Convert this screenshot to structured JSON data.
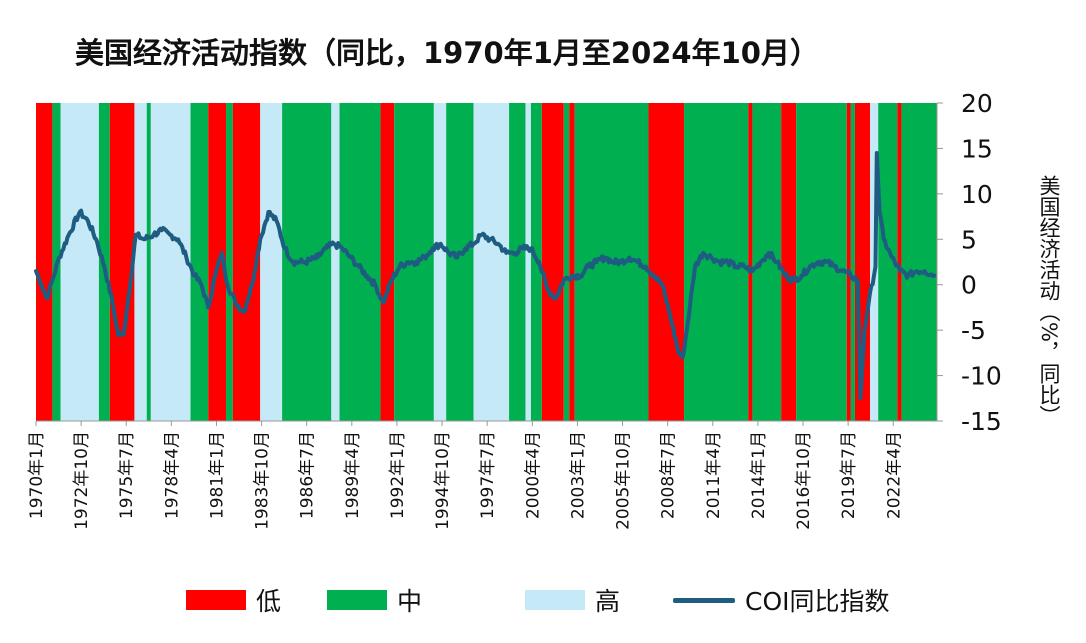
{
  "title": "美国经济活动指数（同比，1970年1月至2024年10月）",
  "colors": {
    "low": "#ff0000",
    "mid": "#00b050",
    "high": "#c6e9f7",
    "line": "#1f5c82",
    "axis": "#999999"
  },
  "legend": [
    {
      "key": "low",
      "label": "低",
      "kind": "swatch"
    },
    {
      "key": "mid",
      "label": "中",
      "kind": "swatch"
    },
    {
      "key": "high",
      "label": "高",
      "kind": "swatch"
    },
    {
      "key": "line",
      "label": "COI同比指数",
      "kind": "line"
    }
  ],
  "chart_data": {
    "type": "line",
    "title": "美国经济活动指数（同比，1970年1月至2024年10月）",
    "xlabel": "",
    "ylabel": "美国经济活动（%，同比）",
    "y_axis_side": "right",
    "ylim": [
      -15,
      20
    ],
    "yticks": [
      20,
      15,
      10,
      5,
      0,
      -5,
      -10,
      -15
    ],
    "x_range": [
      "1970-01",
      "2024-12"
    ],
    "xtick_labels": [
      "1970年1月",
      "1972年10月",
      "1975年7月",
      "1978年4月",
      "1981年1月",
      "1983年10月",
      "1986年7月",
      "1989年4月",
      "1992年1月",
      "1994年10月",
      "1997年7月",
      "2000年4月",
      "2003年1月",
      "2005年10月",
      "2008年7月",
      "2011年4月",
      "2014年1月",
      "2016年10月",
      "2019年7月",
      "2022年4月"
    ],
    "regimes": [
      {
        "start": "1970-01",
        "end": "1971-01",
        "level": "low"
      },
      {
        "start": "1971-01",
        "end": "1971-07",
        "level": "mid"
      },
      {
        "start": "1971-07",
        "end": "1973-11",
        "level": "high"
      },
      {
        "start": "1973-11",
        "end": "1974-07",
        "level": "mid"
      },
      {
        "start": "1974-07",
        "end": "1976-01",
        "level": "low"
      },
      {
        "start": "1976-01",
        "end": "1976-10",
        "level": "high"
      },
      {
        "start": "1976-10",
        "end": "1977-01",
        "level": "mid"
      },
      {
        "start": "1977-01",
        "end": "1979-06",
        "level": "high"
      },
      {
        "start": "1979-06",
        "end": "1980-07",
        "level": "mid"
      },
      {
        "start": "1980-07",
        "end": "1981-08",
        "level": "low"
      },
      {
        "start": "1981-08",
        "end": "1982-01",
        "level": "mid"
      },
      {
        "start": "1982-01",
        "end": "1983-09",
        "level": "low"
      },
      {
        "start": "1983-09",
        "end": "1985-01",
        "level": "high"
      },
      {
        "start": "1985-01",
        "end": "1988-01",
        "level": "mid"
      },
      {
        "start": "1988-01",
        "end": "1988-07",
        "level": "high"
      },
      {
        "start": "1988-07",
        "end": "1991-01",
        "level": "mid"
      },
      {
        "start": "1991-01",
        "end": "1991-11",
        "level": "low"
      },
      {
        "start": "1991-11",
        "end": "1994-04",
        "level": "mid"
      },
      {
        "start": "1994-04",
        "end": "1995-01",
        "level": "high"
      },
      {
        "start": "1995-01",
        "end": "1996-09",
        "level": "mid"
      },
      {
        "start": "1996-09",
        "end": "1998-11",
        "level": "high"
      },
      {
        "start": "1998-11",
        "end": "1999-11",
        "level": "mid"
      },
      {
        "start": "1999-11",
        "end": "2000-03",
        "level": "high"
      },
      {
        "start": "2000-03",
        "end": "2000-11",
        "level": "mid"
      },
      {
        "start": "2000-11",
        "end": "2002-03",
        "level": "low"
      },
      {
        "start": "2002-03",
        "end": "2002-07",
        "level": "mid"
      },
      {
        "start": "2002-07",
        "end": "2002-11",
        "level": "low"
      },
      {
        "start": "2002-11",
        "end": "2007-05",
        "level": "mid"
      },
      {
        "start": "2007-05",
        "end": "2009-07",
        "level": "low"
      },
      {
        "start": "2009-07",
        "end": "2013-06",
        "level": "mid"
      },
      {
        "start": "2013-06",
        "end": "2013-09",
        "level": "low"
      },
      {
        "start": "2013-09",
        "end": "2015-06",
        "level": "mid"
      },
      {
        "start": "2015-06",
        "end": "2016-05",
        "level": "low"
      },
      {
        "start": "2016-05",
        "end": "2019-06",
        "level": "mid"
      },
      {
        "start": "2019-06",
        "end": "2019-09",
        "level": "low"
      },
      {
        "start": "2019-09",
        "end": "2019-12",
        "level": "mid"
      },
      {
        "start": "2019-12",
        "end": "2020-11",
        "level": "low"
      },
      {
        "start": "2020-11",
        "end": "2021-05",
        "level": "high"
      },
      {
        "start": "2021-05",
        "end": "2022-07",
        "level": "mid"
      },
      {
        "start": "2022-07",
        "end": "2022-10",
        "level": "low"
      },
      {
        "start": "2022-10",
        "end": "2024-12",
        "level": "mid"
      }
    ],
    "series": [
      {
        "name": "COI同比指数",
        "points": [
          [
            "1970-01",
            1.5
          ],
          [
            "1970-05",
            0
          ],
          [
            "1970-09",
            -1.5
          ],
          [
            "1971-01",
            0.5
          ],
          [
            "1971-06",
            3
          ],
          [
            "1972-01",
            5.5
          ],
          [
            "1972-09",
            8
          ],
          [
            "1973-03",
            7
          ],
          [
            "1973-09",
            5
          ],
          [
            "1974-03",
            2
          ],
          [
            "1974-09",
            -2
          ],
          [
            "1975-01",
            -5.5
          ],
          [
            "1975-05",
            -5.5
          ],
          [
            "1975-09",
            -1
          ],
          [
            "1976-02",
            5.5
          ],
          [
            "1976-08",
            5
          ],
          [
            "1977-03",
            5.5
          ],
          [
            "1977-09",
            6
          ],
          [
            "1978-03",
            5.5
          ],
          [
            "1978-09",
            5
          ],
          [
            "1979-03",
            3
          ],
          [
            "1979-09",
            1
          ],
          [
            "1980-02",
            0
          ],
          [
            "1980-07",
            -2.5
          ],
          [
            "1980-12",
            1
          ],
          [
            "1981-05",
            3.5
          ],
          [
            "1981-09",
            0
          ],
          [
            "1982-03",
            -2
          ],
          [
            "1982-09",
            -3
          ],
          [
            "1983-03",
            0
          ],
          [
            "1983-09",
            5
          ],
          [
            "1984-03",
            8
          ],
          [
            "1984-09",
            7
          ],
          [
            "1985-03",
            4
          ],
          [
            "1985-09",
            2.5
          ],
          [
            "1986-06",
            2.5
          ],
          [
            "1987-03",
            3
          ],
          [
            "1987-09",
            4
          ],
          [
            "1988-03",
            4.5
          ],
          [
            "1988-09",
            4
          ],
          [
            "1989-03",
            3
          ],
          [
            "1989-09",
            2
          ],
          [
            "1990-03",
            1
          ],
          [
            "1990-09",
            0
          ],
          [
            "1991-03",
            -2
          ],
          [
            "1991-09",
            0.5
          ],
          [
            "1992-03",
            2
          ],
          [
            "1992-09",
            2.5
          ],
          [
            "1993-03",
            2.5
          ],
          [
            "1993-09",
            3
          ],
          [
            "1994-03",
            4
          ],
          [
            "1994-09",
            4.5
          ],
          [
            "1995-03",
            3.5
          ],
          [
            "1995-09",
            3
          ],
          [
            "1996-03",
            4
          ],
          [
            "1996-09",
            4.5
          ],
          [
            "1997-03",
            5.5
          ],
          [
            "1997-09",
            5
          ],
          [
            "1998-03",
            4.5
          ],
          [
            "1998-09",
            3.5
          ],
          [
            "1999-03",
            3.5
          ],
          [
            "1999-09",
            4
          ],
          [
            "2000-03",
            4
          ],
          [
            "2000-09",
            2.5
          ],
          [
            "2001-03",
            -0.5
          ],
          [
            "2001-09",
            -1.5
          ],
          [
            "2002-03",
            0.5
          ],
          [
            "2002-09",
            1
          ],
          [
            "2003-03",
            1
          ],
          [
            "2003-09",
            2
          ],
          [
            "2004-03",
            2.5
          ],
          [
            "2004-09",
            3
          ],
          [
            "2005-03",
            2.5
          ],
          [
            "2005-09",
            2.5
          ],
          [
            "2006-03",
            3
          ],
          [
            "2006-09",
            2.5
          ],
          [
            "2007-03",
            2
          ],
          [
            "2007-09",
            1
          ],
          [
            "2008-03",
            0
          ],
          [
            "2008-09",
            -3.5
          ],
          [
            "2009-03",
            -7.5
          ],
          [
            "2009-06",
            -8
          ],
          [
            "2009-09",
            -5
          ],
          [
            "2010-03",
            2
          ],
          [
            "2010-09",
            3.5
          ],
          [
            "2011-03",
            3
          ],
          [
            "2011-09",
            2.5
          ],
          [
            "2012-03",
            2.5
          ],
          [
            "2012-09",
            2
          ],
          [
            "2013-03",
            2
          ],
          [
            "2013-09",
            1.5
          ],
          [
            "2014-03",
            2.5
          ],
          [
            "2014-09",
            3.5
          ],
          [
            "2015-03",
            2.5
          ],
          [
            "2015-09",
            1
          ],
          [
            "2016-03",
            0.5
          ],
          [
            "2016-09",
            1
          ],
          [
            "2017-03",
            2
          ],
          [
            "2017-09",
            2.5
          ],
          [
            "2018-03",
            2.5
          ],
          [
            "2018-09",
            2
          ],
          [
            "2019-03",
            1.5
          ],
          [
            "2019-09",
            1
          ],
          [
            "2020-02",
            0.5
          ],
          [
            "2020-04",
            -12.5
          ],
          [
            "2020-07",
            -5
          ],
          [
            "2020-10",
            -2
          ],
          [
            "2021-03",
            2
          ],
          [
            "2021-04",
            14.5
          ],
          [
            "2021-06",
            8
          ],
          [
            "2021-09",
            5
          ],
          [
            "2022-03",
            3
          ],
          [
            "2022-09",
            1.5
          ],
          [
            "2023-03",
            1
          ],
          [
            "2023-09",
            1.5
          ],
          [
            "2024-03",
            1.5
          ],
          [
            "2024-10",
            1
          ]
        ]
      }
    ],
    "grid": false,
    "legend_position": "bottom"
  }
}
